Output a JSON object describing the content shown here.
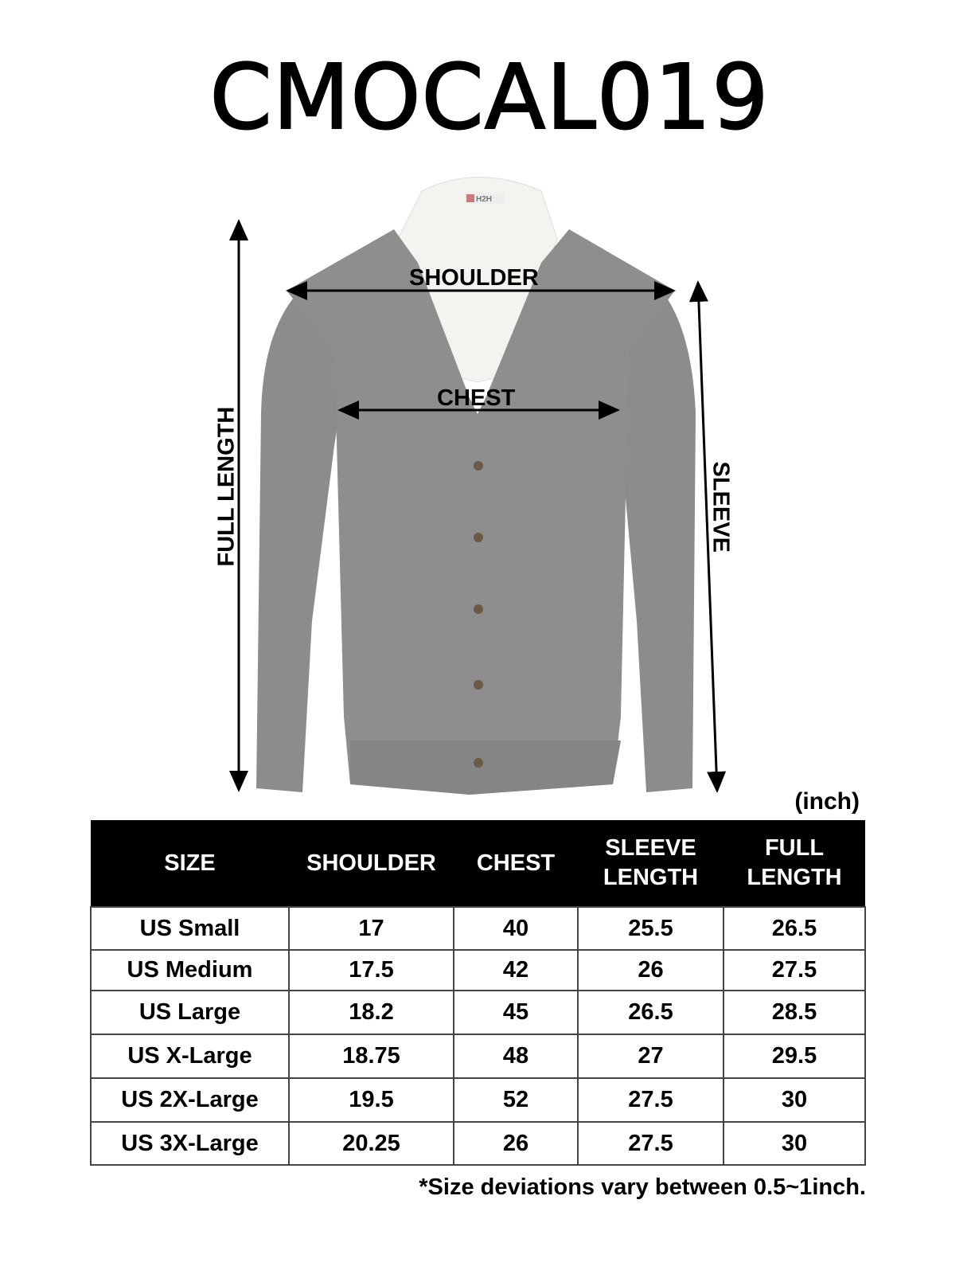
{
  "title": "CMOCAL019",
  "garment": {
    "label_brand": "H2H",
    "measure_labels": {
      "shoulder": "SHOULDER",
      "chest": "CHEST",
      "full_length": "FULL LENGTH",
      "sleeve": "SLEEVE"
    },
    "colors": {
      "sweater": "#8c8c8c",
      "shirt": "#f4f3ef"
    }
  },
  "unit": "(inch)",
  "table": {
    "headers": [
      "SIZE",
      "SHOULDER",
      "CHEST",
      "SLEEVE LENGTH",
      "FULL LENGTH"
    ],
    "rows": [
      [
        "US Small",
        "17",
        "40",
        "25.5",
        "26.5"
      ],
      [
        "US Medium",
        "17.5",
        "42",
        "26",
        "27.5"
      ],
      [
        "US Large",
        "18.2",
        "45",
        "26.5",
        "28.5"
      ],
      [
        "US X-Large",
        "18.75",
        "48",
        "27",
        "29.5"
      ],
      [
        "US 2X-Large",
        "19.5",
        "52",
        "27.5",
        "30"
      ],
      [
        "US 3X-Large",
        "20.25",
        "26",
        "27.5",
        "30"
      ]
    ]
  },
  "footnote": "*Size deviations vary between 0.5~1inch."
}
